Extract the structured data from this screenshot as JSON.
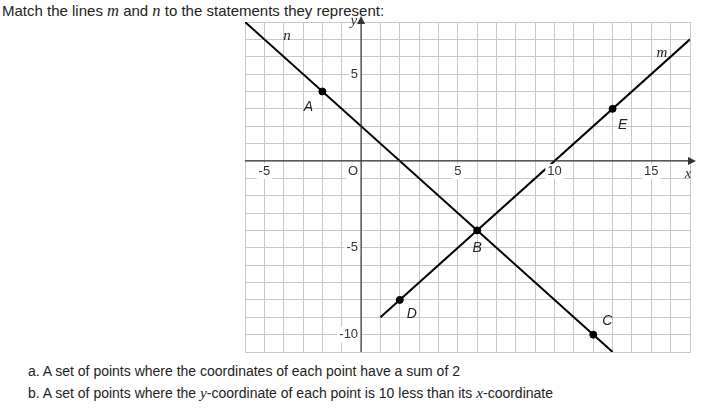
{
  "question": "Match the lines m and n to the statements they represent:",
  "statements": [
    "a. A set of points where the coordinates of each point have a sum of 2",
    "b. A set of points where the y-coordinate of each point is 10 less than its x-coordinate"
  ],
  "chart_data": {
    "type": "line",
    "xlabel": "x",
    "ylabel": "y",
    "xlim": [
      -6,
      17
    ],
    "ylim": [
      -11,
      8
    ],
    "xticks": [
      -5,
      {
        "value": 0,
        "label": "O"
      },
      5,
      10,
      15
    ],
    "yticks": [
      -10,
      -5,
      5
    ],
    "grid": true,
    "series": [
      {
        "name": "m",
        "color": "#000000",
        "x": [
          1,
          17
        ],
        "values": [
          -9,
          7
        ]
      },
      {
        "name": "n",
        "color": "#000000",
        "x": [
          -6,
          13
        ],
        "values": [
          8,
          -11
        ]
      }
    ],
    "points": [
      {
        "label": "A",
        "x": -2,
        "y": 4
      },
      {
        "label": "B",
        "x": 6,
        "y": -4
      },
      {
        "label": "C",
        "x": 12,
        "y": -10
      },
      {
        "label": "D",
        "x": 2,
        "y": -8
      },
      {
        "label": "E",
        "x": 13,
        "y": 3
      }
    ],
    "color": "#000000"
  }
}
